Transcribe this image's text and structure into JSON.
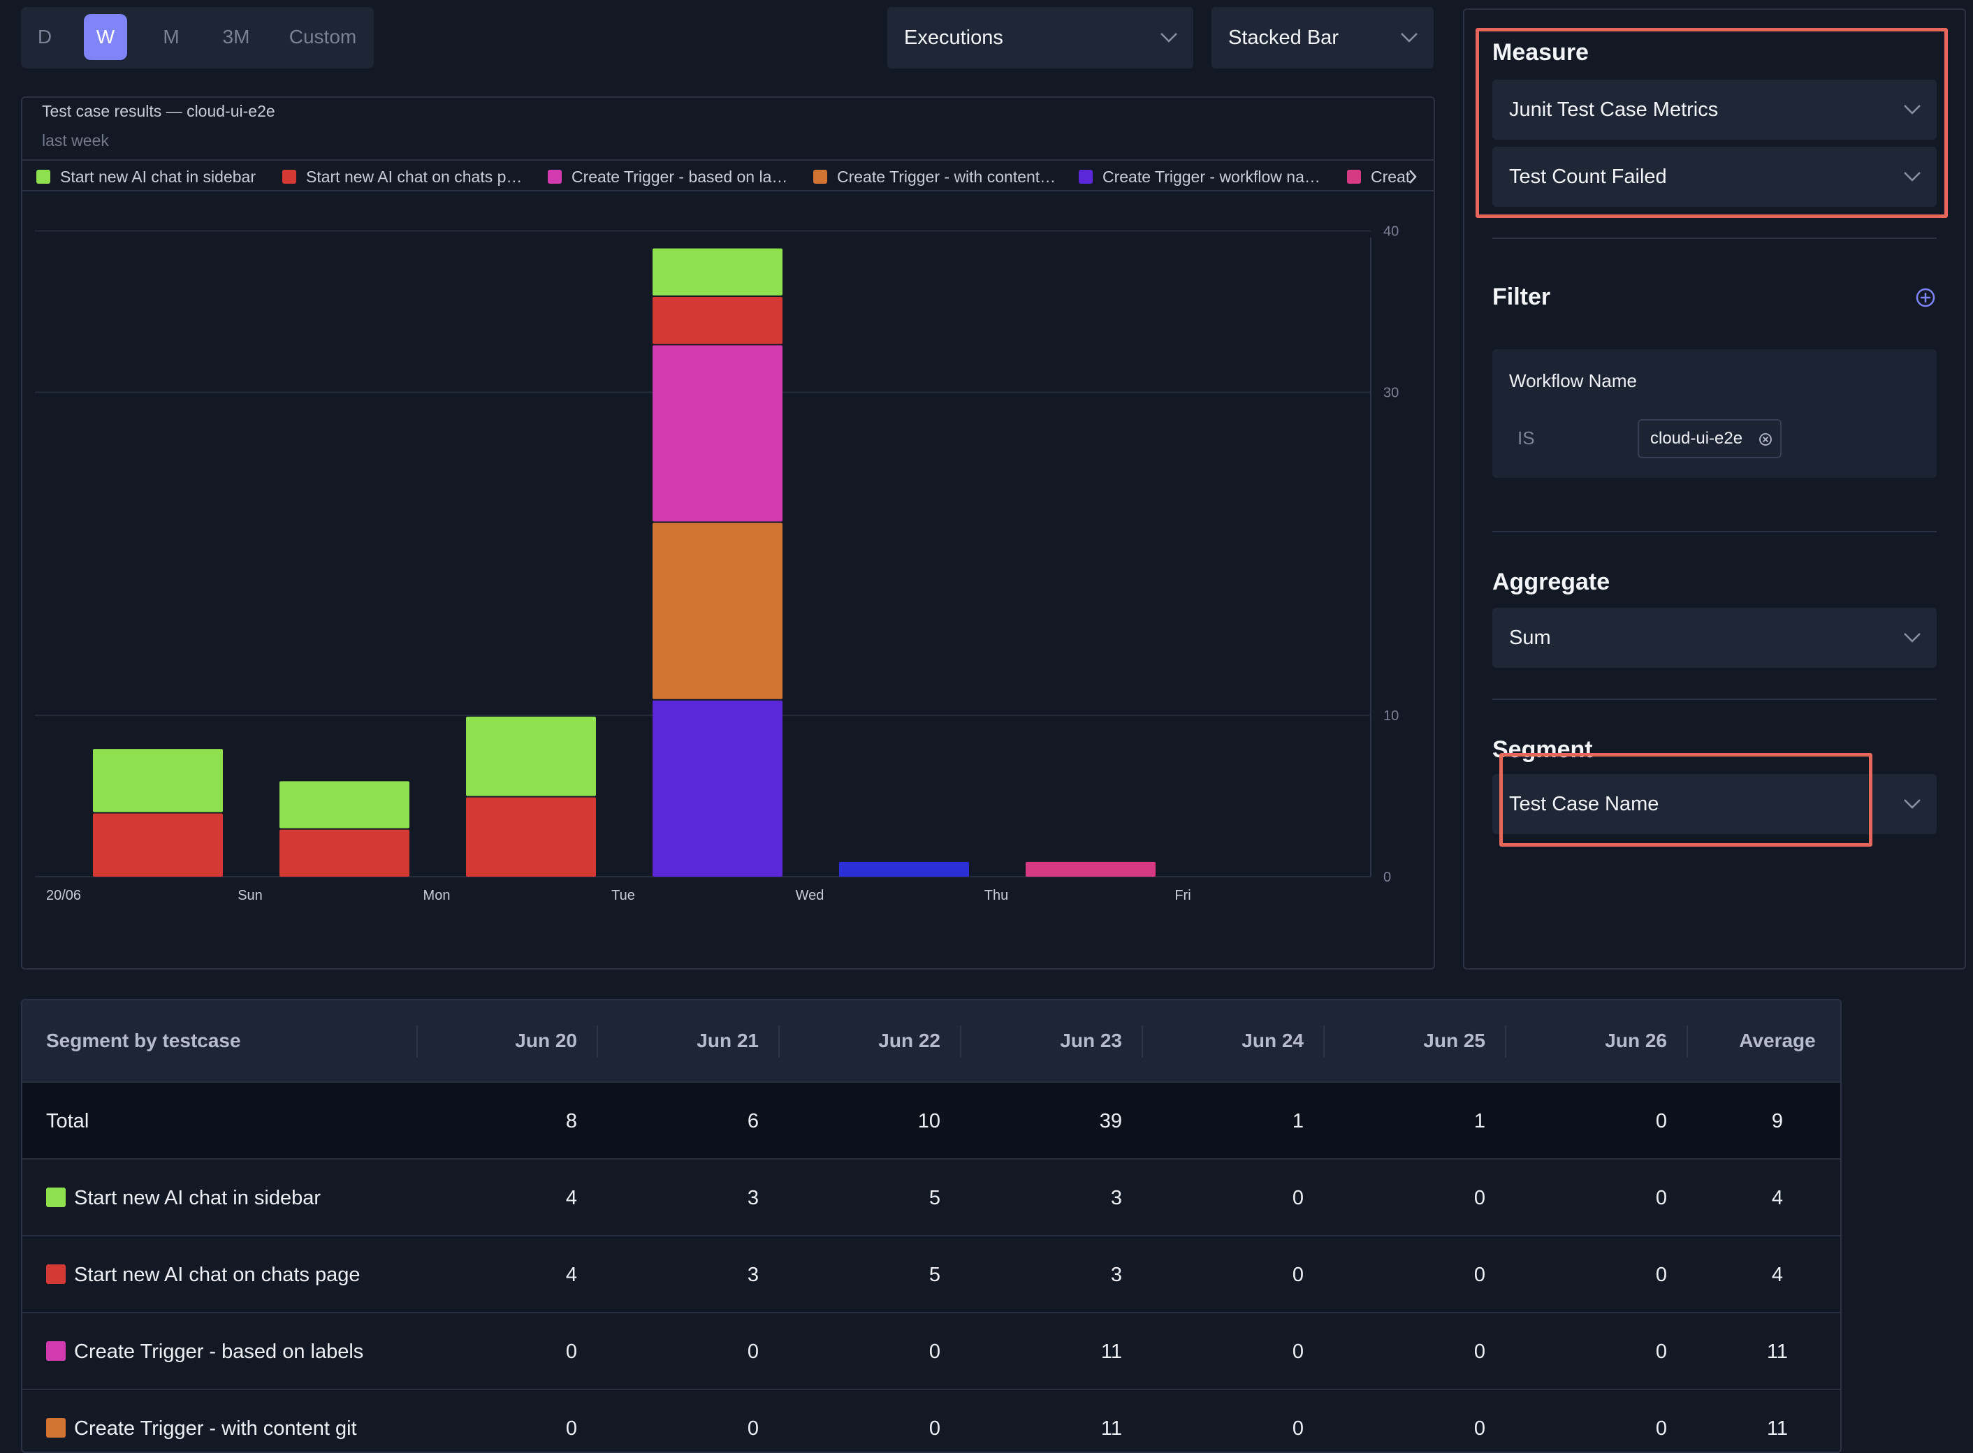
{
  "range_tabs": [
    "D",
    "W",
    "M",
    "3M",
    "Custom"
  ],
  "active_range": "W",
  "toolbar": {
    "metric_select": "Executions",
    "chart_type_select": "Stacked Bar"
  },
  "chart": {
    "title": "Test case results — cloud-ui-e2e",
    "subtitle": "last week",
    "legend": [
      {
        "label": "Start new AI chat in sidebar",
        "color": "#8ee04e"
      },
      {
        "label": "Start new AI chat on chats p…",
        "color": "#d43a33"
      },
      {
        "label": "Create Trigger - based on la…",
        "color": "#d23aaf"
      },
      {
        "label": "Create Trigger - with content…",
        "color": "#d27434"
      },
      {
        "label": "Create Trigger - workflow na…",
        "color": "#5c27d8"
      },
      {
        "label": "Creat",
        "color": "#d63a82"
      }
    ]
  },
  "chart_data": {
    "type": "bar",
    "stacked": true,
    "categories": [
      "20/06",
      "Sun",
      "Mon",
      "Tue",
      "Wed",
      "Thu",
      "Fri"
    ],
    "yticks": [
      0,
      10,
      30,
      40
    ],
    "ylim": [
      0,
      44
    ],
    "grid": true,
    "legend_position": "top",
    "series": [
      {
        "color": "#5c27d8",
        "values": [
          0,
          0,
          0,
          11,
          0,
          0,
          0
        ]
      },
      {
        "color": "#2b2fd6",
        "values": [
          0,
          0,
          0,
          0,
          1,
          0,
          0
        ]
      },
      {
        "color": "#d63a82",
        "values": [
          0,
          0,
          0,
          0,
          0,
          1,
          0
        ]
      },
      {
        "color": "#d27434",
        "values": [
          0,
          0,
          0,
          11,
          0,
          0,
          0
        ]
      },
      {
        "color": "#d23aaf",
        "values": [
          0,
          0,
          0,
          11,
          0,
          0,
          0
        ]
      },
      {
        "color": "#d43a33",
        "values": [
          4,
          3,
          5,
          3,
          0,
          0,
          0
        ]
      },
      {
        "color": "#8ee04e",
        "values": [
          4,
          3,
          5,
          3,
          0,
          0,
          0
        ]
      }
    ]
  },
  "side": {
    "measure_title": "Measure",
    "measure_source": "Junit Test Case Metrics",
    "measure_field": "Test Count Failed",
    "filter_title": "Filter",
    "filter_field": "Workflow Name",
    "filter_op": "IS",
    "filter_value": "cloud-ui-e2e",
    "aggregate_title": "Aggregate",
    "aggregate_value": "Sum",
    "segment_title": "Segment",
    "segment_value": "Test Case Name"
  },
  "table": {
    "headers": [
      "Segment by testcase",
      "Jun 20",
      "Jun 21",
      "Jun 22",
      "Jun 23",
      "Jun 24",
      "Jun 25",
      "Jun 26",
      "Average"
    ],
    "rows": [
      {
        "label": "Total",
        "color": "",
        "values": [
          "8",
          "6",
          "10",
          "39",
          "1",
          "1",
          "0",
          "9"
        ]
      },
      {
        "label": "Start new AI chat in sidebar",
        "color": "#8ee04e",
        "values": [
          "4",
          "3",
          "5",
          "3",
          "0",
          "0",
          "0",
          "4"
        ]
      },
      {
        "label": "Start new AI chat on chats page",
        "color": "#d43a33",
        "values": [
          "4",
          "3",
          "5",
          "3",
          "0",
          "0",
          "0",
          "4"
        ]
      },
      {
        "label": "Create Trigger - based on labels",
        "color": "#d23aaf",
        "values": [
          "0",
          "0",
          "0",
          "11",
          "0",
          "0",
          "0",
          "11"
        ]
      },
      {
        "label": "Create Trigger - with content git",
        "color": "#d27434",
        "values": [
          "0",
          "0",
          "0",
          "11",
          "0",
          "0",
          "0",
          "11"
        ]
      }
    ]
  }
}
